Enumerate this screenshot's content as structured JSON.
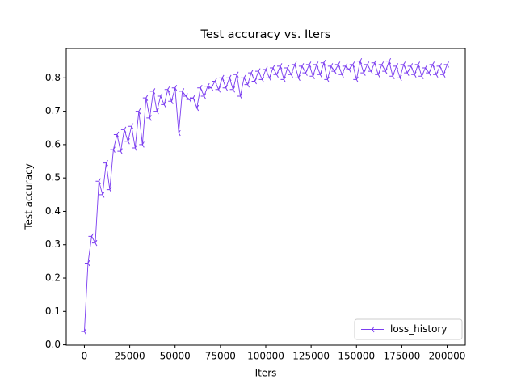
{
  "chart_data": {
    "type": "line",
    "title": "Test accuracy  vs. Iters",
    "xlabel": "Iters",
    "ylabel": "Test accuracy",
    "x": [
      0,
      2000,
      4000,
      6000,
      8000,
      10000,
      12000,
      14000,
      16000,
      18000,
      20000,
      22000,
      24000,
      26000,
      28000,
      30000,
      32000,
      34000,
      36000,
      38000,
      40000,
      42000,
      44000,
      46000,
      48000,
      50000,
      52000,
      54000,
      56000,
      58000,
      60000,
      62000,
      64000,
      66000,
      68000,
      70000,
      72000,
      74000,
      76000,
      78000,
      80000,
      82000,
      84000,
      86000,
      88000,
      90000,
      92000,
      94000,
      96000,
      98000,
      100000,
      102000,
      104000,
      106000,
      108000,
      110000,
      112000,
      114000,
      116000,
      118000,
      120000,
      122000,
      124000,
      126000,
      128000,
      130000,
      132000,
      134000,
      136000,
      138000,
      140000,
      142000,
      144000,
      146000,
      148000,
      150000,
      152000,
      154000,
      156000,
      158000,
      160000,
      162000,
      164000,
      166000,
      168000,
      170000,
      172000,
      174000,
      176000,
      178000,
      180000,
      182000,
      184000,
      186000,
      188000,
      190000,
      192000,
      194000,
      196000,
      198000,
      200000
    ],
    "series": [
      {
        "name": "loss_history",
        "color": "#7b3df0",
        "values": [
          0.04,
          0.245,
          0.325,
          0.305,
          0.49,
          0.45,
          0.545,
          0.465,
          0.585,
          0.63,
          0.58,
          0.645,
          0.61,
          0.655,
          0.59,
          0.7,
          0.6,
          0.74,
          0.68,
          0.76,
          0.7,
          0.745,
          0.72,
          0.765,
          0.73,
          0.77,
          0.635,
          0.76,
          0.745,
          0.735,
          0.74,
          0.71,
          0.77,
          0.745,
          0.775,
          0.77,
          0.79,
          0.765,
          0.8,
          0.77,
          0.8,
          0.765,
          0.81,
          0.745,
          0.8,
          0.78,
          0.815,
          0.79,
          0.82,
          0.795,
          0.825,
          0.8,
          0.83,
          0.81,
          0.835,
          0.795,
          0.83,
          0.81,
          0.84,
          0.8,
          0.835,
          0.815,
          0.84,
          0.805,
          0.84,
          0.81,
          0.845,
          0.795,
          0.835,
          0.82,
          0.84,
          0.81,
          0.835,
          0.825,
          0.84,
          0.795,
          0.85,
          0.815,
          0.84,
          0.82,
          0.845,
          0.81,
          0.84,
          0.82,
          0.85,
          0.805,
          0.835,
          0.8,
          0.84,
          0.815,
          0.835,
          0.81,
          0.84,
          0.805,
          0.83,
          0.815,
          0.84,
          0.81,
          0.835,
          0.81,
          0.84
        ]
      }
    ],
    "xlim": [
      -10000,
      210000
    ],
    "xticks": [
      0,
      25000,
      50000,
      75000,
      100000,
      125000,
      150000,
      175000,
      200000
    ],
    "ylim": [
      -0.001,
      0.888
    ],
    "yticks": [
      {
        "value": 0,
        "label": "0.0"
      },
      0.1,
      0.2,
      0.3,
      0.4,
      0.5,
      0.6,
      0.7,
      0.8
    ],
    "legend": "lower right"
  }
}
